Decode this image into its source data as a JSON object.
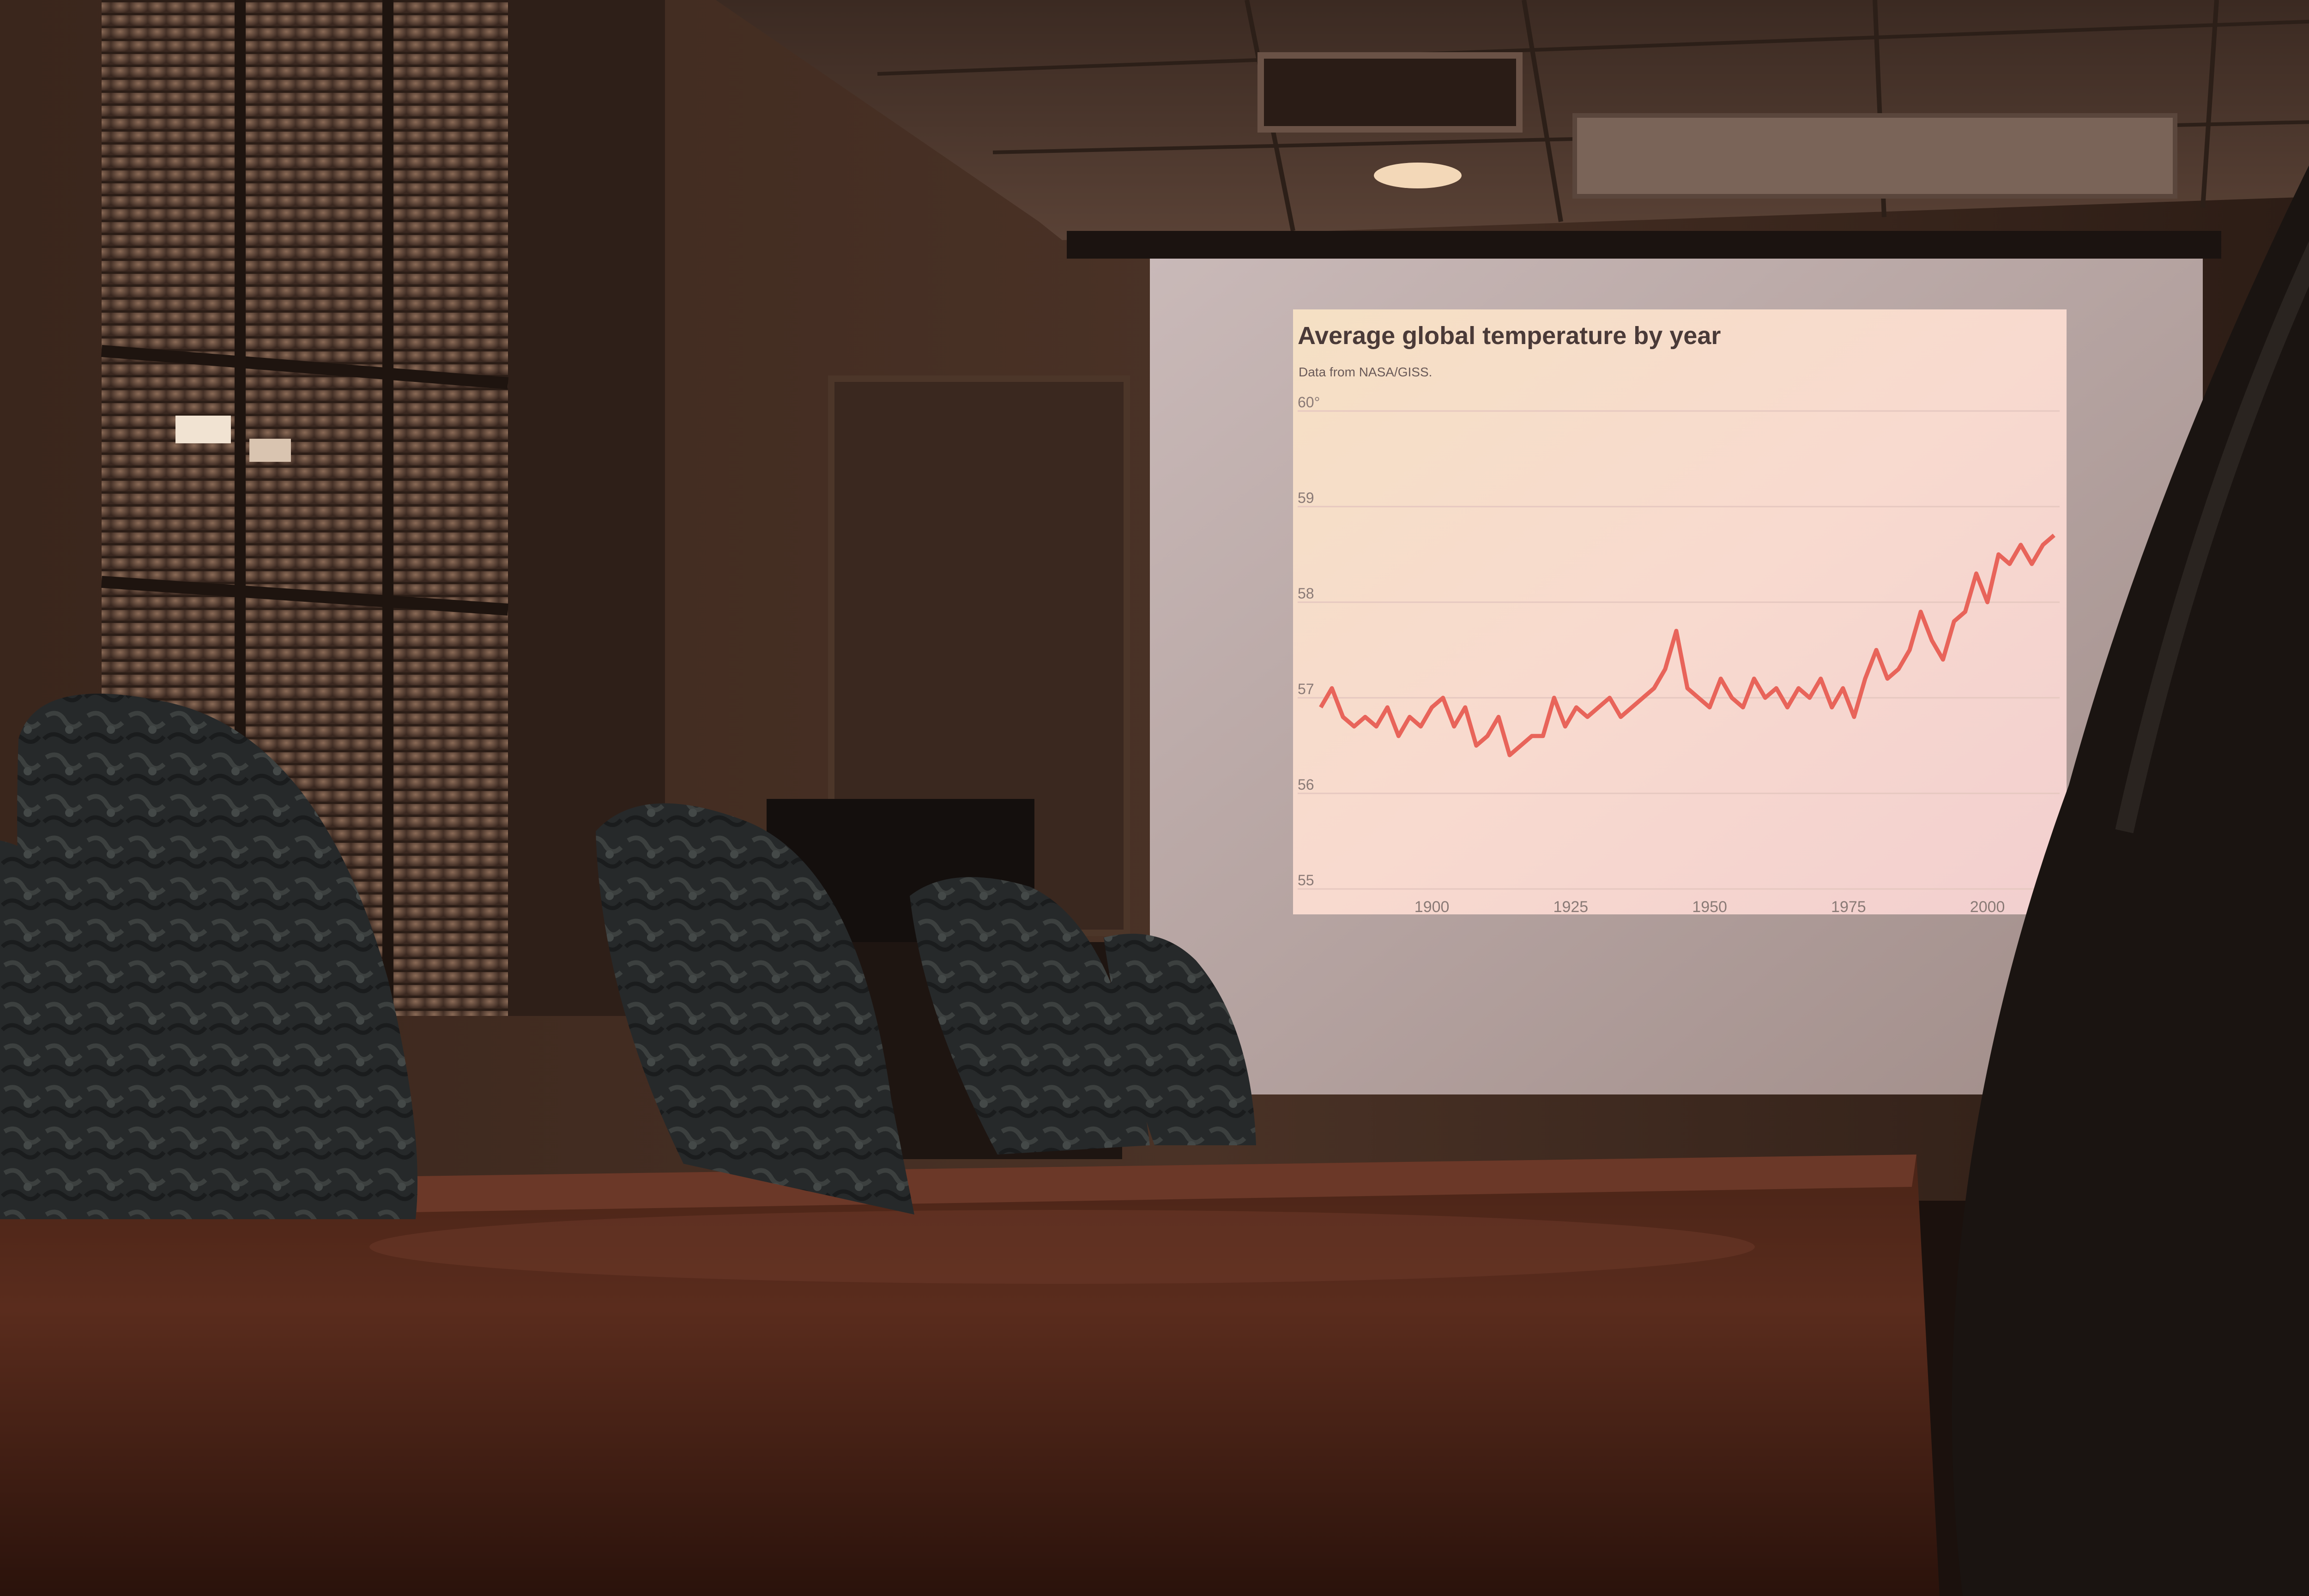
{
  "slide": {
    "title": "Average global temperature by year",
    "subtitle": "Data from NASA/GISS."
  },
  "chart_data": {
    "type": "line",
    "title": "Average global temperature by year",
    "subtitle": "Data from NASA/GISS.",
    "xlabel": "",
    "ylabel": "",
    "xlim": [
      1880,
      2013
    ],
    "ylim": [
      55,
      60
    ],
    "x_ticks": [
      "1900",
      "1925",
      "1950",
      "1975",
      "2000"
    ],
    "y_ticks": [
      "60°",
      "59",
      "58",
      "57",
      "56",
      "55"
    ],
    "grid": true,
    "legend": "none",
    "line_color": "#e8645a",
    "series": [
      {
        "x": [
          1880,
          1882,
          1884,
          1886,
          1888,
          1890,
          1892,
          1894,
          1896,
          1898,
          1900,
          1902,
          1904,
          1906,
          1908,
          1910,
          1912,
          1914,
          1916,
          1918,
          1920,
          1922,
          1924,
          1926,
          1928,
          1930,
          1932,
          1934,
          1936,
          1938,
          1940,
          1942,
          1944,
          1946,
          1948,
          1950,
          1952,
          1954,
          1956,
          1958,
          1960,
          1962,
          1964,
          1966,
          1968,
          1970,
          1972,
          1974,
          1976,
          1978,
          1980,
          1982,
          1984,
          1986,
          1988,
          1990,
          1992,
          1994,
          1996,
          1998,
          2000,
          2002,
          2004,
          2006,
          2008,
          2010,
          2012
        ],
        "values": [
          56.9,
          57.1,
          56.8,
          56.7,
          56.8,
          56.7,
          56.9,
          56.6,
          56.8,
          56.7,
          56.9,
          57.0,
          56.7,
          56.9,
          56.5,
          56.6,
          56.8,
          56.4,
          56.5,
          56.6,
          56.6,
          57.0,
          56.7,
          56.9,
          56.8,
          56.9,
          57.0,
          56.8,
          56.9,
          57.0,
          57.1,
          57.3,
          57.7,
          57.1,
          57.0,
          56.9,
          57.2,
          57.0,
          56.9,
          57.2,
          57.0,
          57.1,
          56.9,
          57.1,
          57.0,
          57.2,
          56.9,
          57.1,
          56.8,
          57.2,
          57.5,
          57.2,
          57.3,
          57.5,
          57.9,
          57.6,
          57.4,
          57.8,
          57.9,
          58.3,
          58.0,
          58.5,
          58.4,
          58.6,
          58.4,
          58.6,
          58.7
        ]
      }
    ]
  }
}
